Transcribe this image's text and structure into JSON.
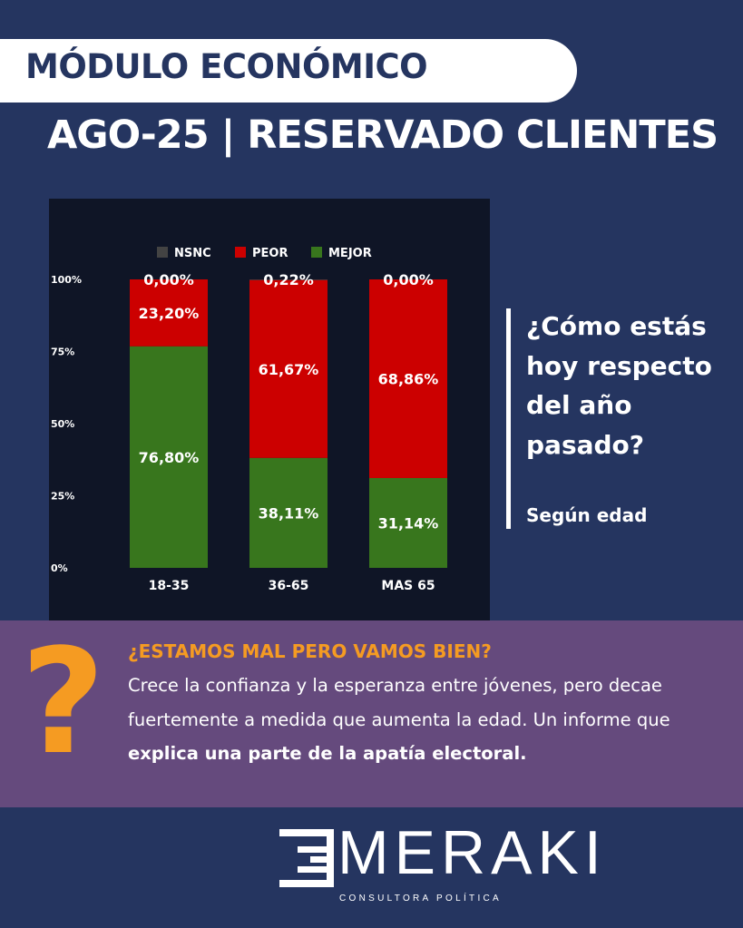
{
  "header": {
    "module_title": "MÓDULO ECONÓMICO",
    "subtitle": "AGO-25 | RESERVADO CLIENTES"
  },
  "question": {
    "text": "¿Cómo estás hoy respecto del año pasado?",
    "sub": "Según edad"
  },
  "chart_data": {
    "type": "bar",
    "stacked": true,
    "categories": [
      "18-35",
      "36-65",
      "MAS 65"
    ],
    "series": [
      {
        "name": "MEJOR",
        "color": "#38761d",
        "values": [
          76.8,
          38.11,
          31.14
        ],
        "labels": [
          "76,80%",
          "38,11%",
          "31,14%"
        ]
      },
      {
        "name": "PEOR",
        "color": "#cc0000",
        "values": [
          23.2,
          61.67,
          68.86
        ],
        "labels": [
          "23,20%",
          "61,67%",
          "68,86%"
        ]
      },
      {
        "name": "NSNC",
        "color": "#434343",
        "values": [
          0.0,
          0.22,
          0.0
        ],
        "labels": [
          "0,00%",
          "0,22%",
          "0,00%"
        ]
      }
    ],
    "yticks": [
      "0%",
      "25%",
      "50%",
      "75%",
      "100%"
    ],
    "ylim": [
      0,
      100
    ],
    "legend_order": [
      "NSNC",
      "PEOR",
      "MEJOR"
    ],
    "legend_position": "top",
    "grid": false
  },
  "insight": {
    "title": "¿ESTAMOS MAL PERO VAMOS BIEN?",
    "body_plain": "Crece la confianza y la esperanza entre jóvenes, pero decae fuertemente a medida que aumenta la edad.  Un informe que ",
    "body_bold": "explica una parte de la apatía electoral.",
    "icon": "question-mark-icon"
  },
  "brand": {
    "name": "MERAKI",
    "tagline": "CONSULTORA POLÍTICA"
  },
  "colors": {
    "background": "#253560",
    "accent": "#f59b22",
    "band": "#654a7d"
  }
}
